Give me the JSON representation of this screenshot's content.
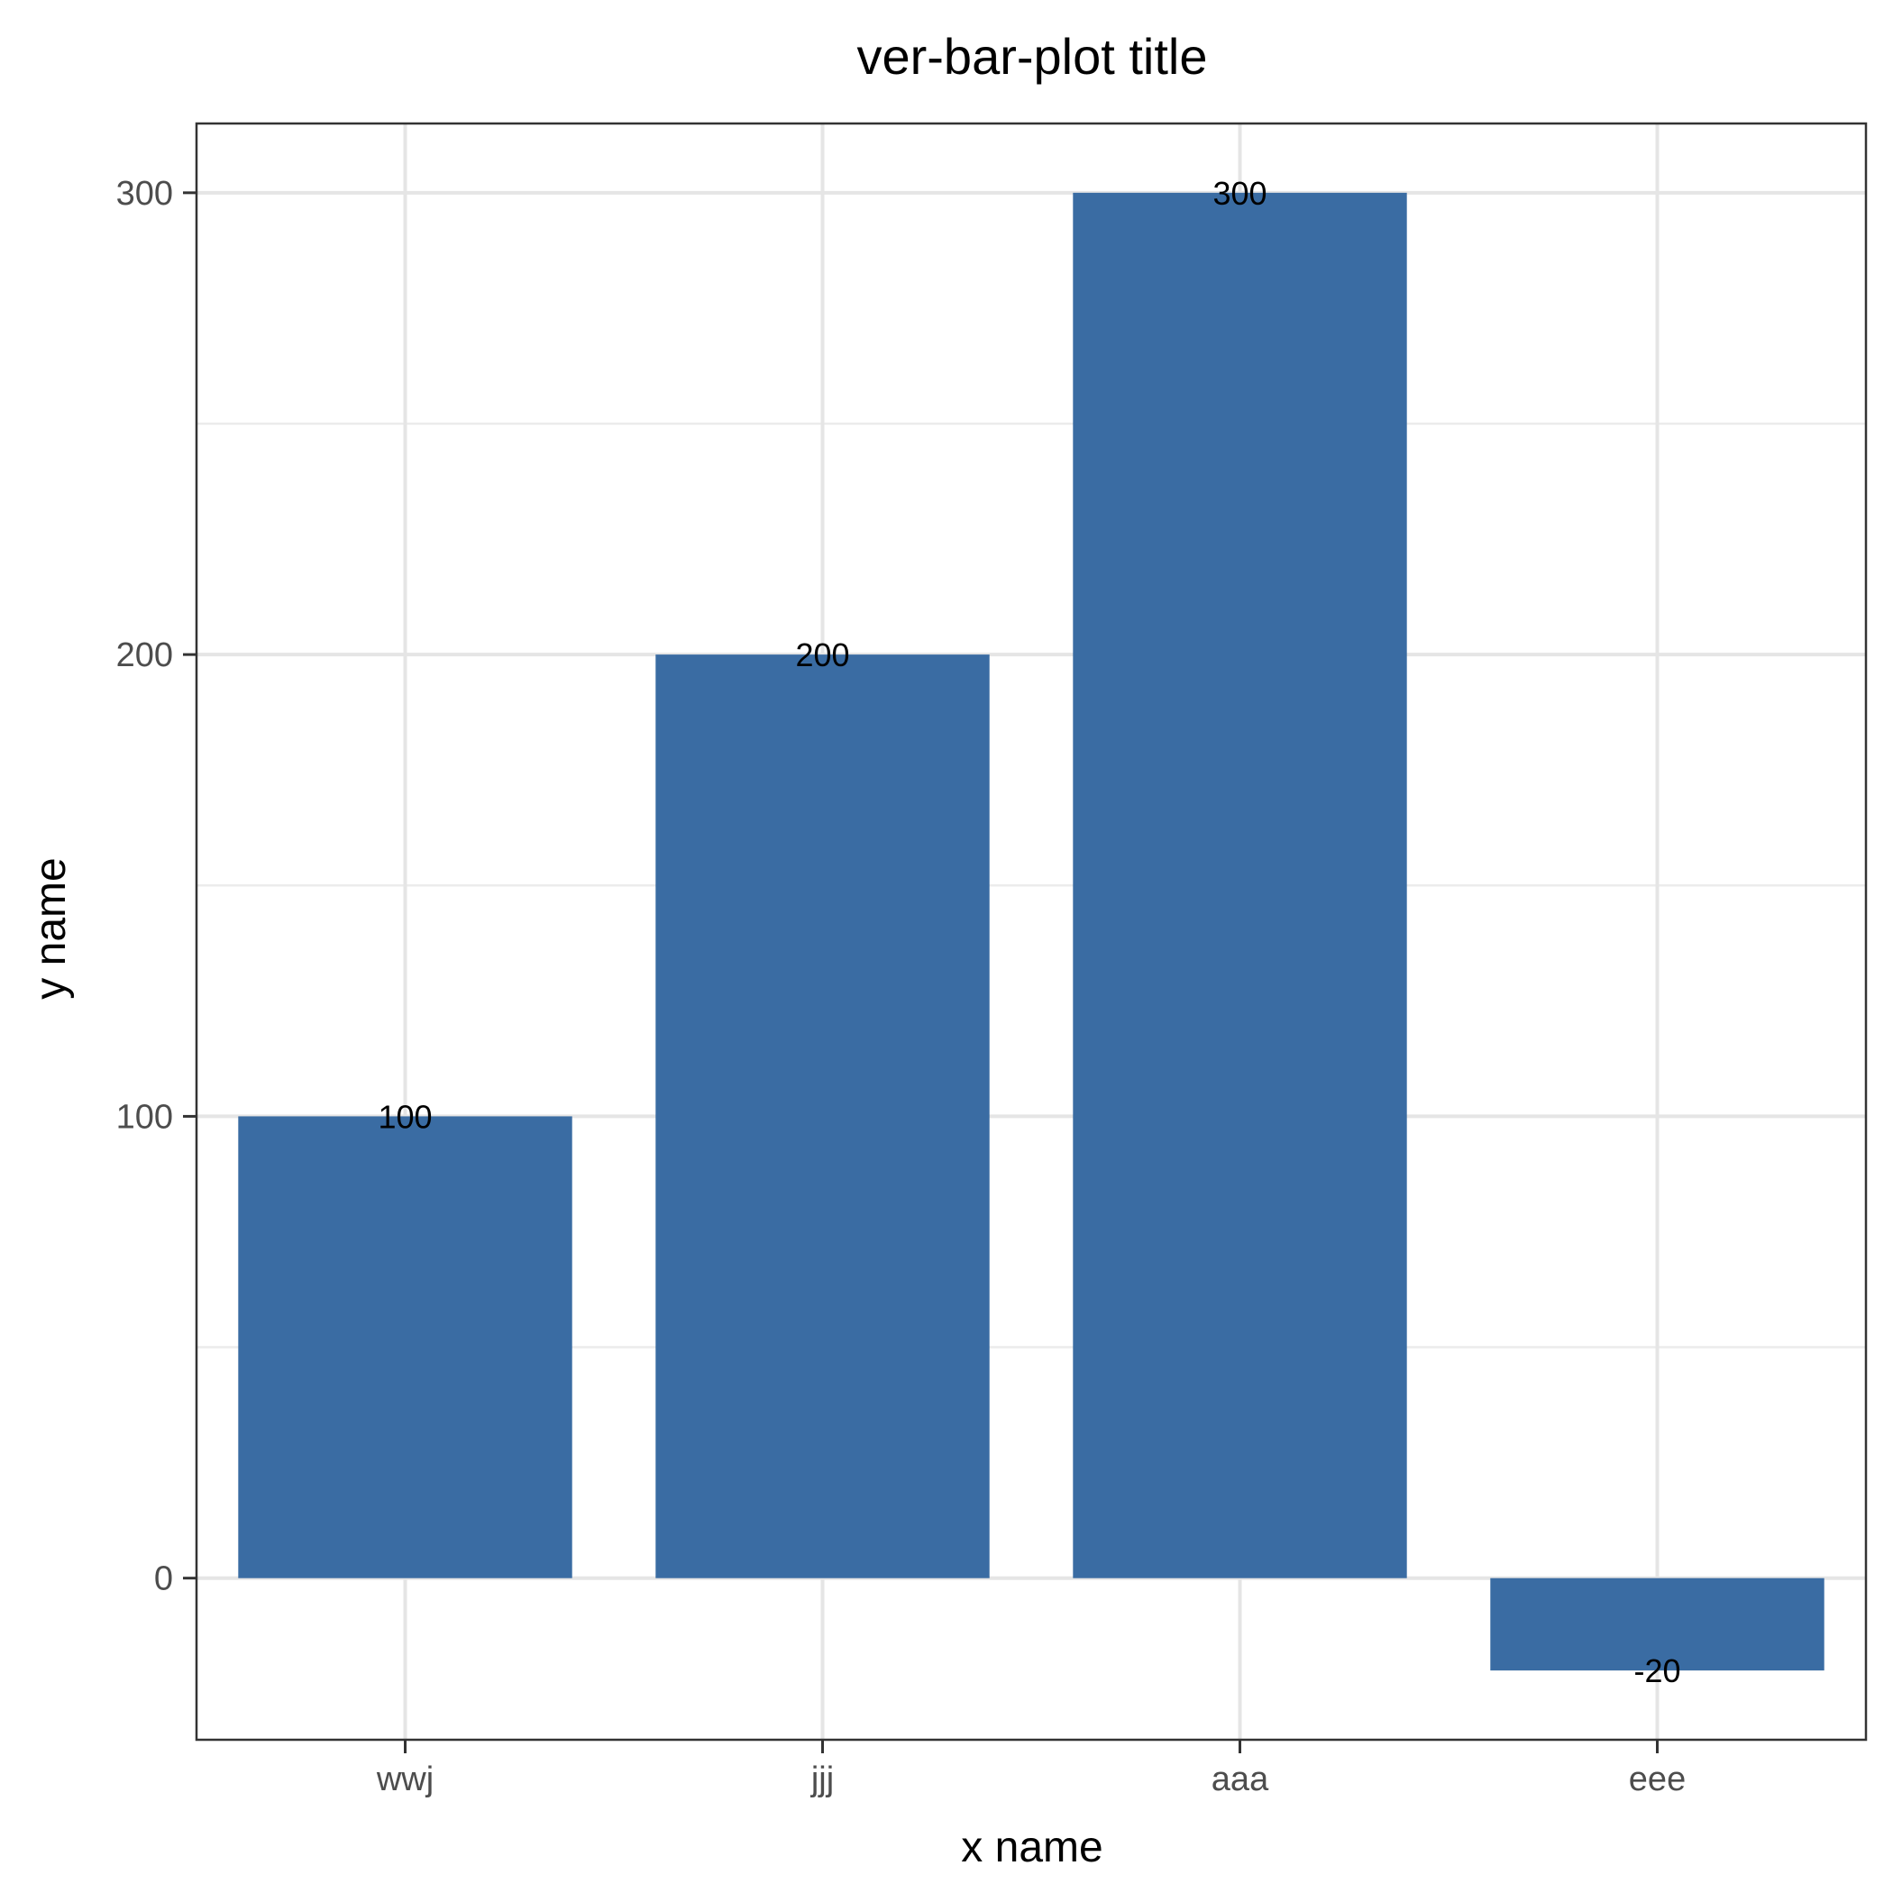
{
  "chart_data": {
    "type": "bar",
    "title": "ver-bar-plot title",
    "xlabel": "x name",
    "ylabel": "y name",
    "categories": [
      "wwj",
      "jjj",
      "aaa",
      "eee"
    ],
    "values": [
      100,
      200,
      300,
      -20
    ],
    "data_labels": [
      "100",
      "200",
      "300",
      "-20"
    ],
    "ylim": [
      -35,
      315
    ],
    "yticks": [
      0,
      100,
      200,
      300
    ],
    "ytick_labels": [
      "0",
      "100",
      "200",
      "300"
    ],
    "y_minor_ticks": [
      50,
      150,
      250
    ],
    "grid": true,
    "legend": "none",
    "colors": {
      "bar": "#3a6ca3",
      "grid": "#e5e5e5",
      "panel_border": "#333333",
      "tick_label": "#4d4d4d"
    }
  }
}
